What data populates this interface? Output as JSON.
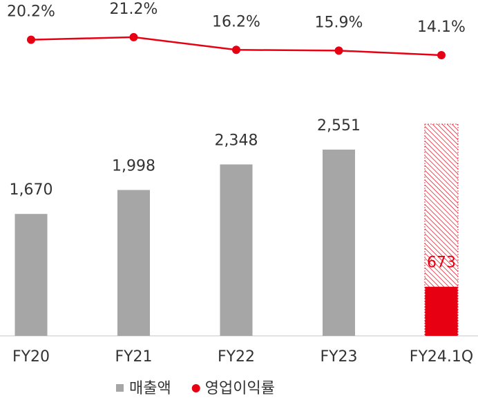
{
  "chart_data": {
    "type": "bar_line",
    "categories": [
      "FY20",
      "FY21",
      "FY22",
      "FY23",
      "FY24.1Q"
    ],
    "series": [
      {
        "name": "매출액",
        "type": "bar",
        "color": "#a6a6a6",
        "bar_colors": [
          "#a6a6a6",
          "#a6a6a6",
          "#a6a6a6",
          "#a6a6a6",
          "#e60012"
        ],
        "values": [
          1670,
          1998,
          2348,
          2551,
          673
        ],
        "value_labels": [
          "1,670",
          "1,998",
          "2,348",
          "2,551",
          "673"
        ]
      },
      {
        "name": "영업이익률",
        "type": "line",
        "axis": "y2",
        "color": "#e60012",
        "values": [
          20.2,
          21.2,
          16.2,
          15.9,
          14.1
        ],
        "value_labels": [
          "20.2%",
          "21.2%",
          "16.2%",
          "15.9%",
          "14.1%"
        ]
      }
    ],
    "ylim": [
      0,
      4600
    ],
    "y2lim": [
      10,
      25
    ],
    "grid": false
  }
}
